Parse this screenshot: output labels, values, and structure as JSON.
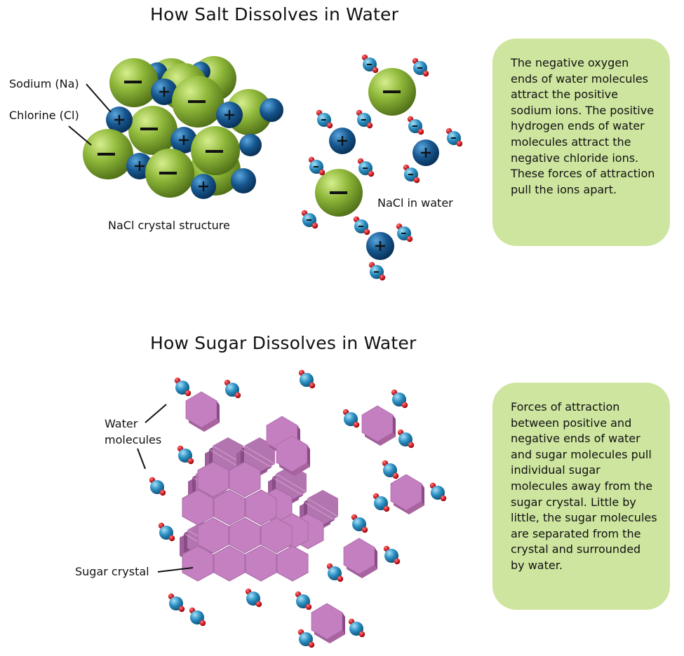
{
  "salt": {
    "title": "How Salt Dissolves in Water",
    "label_sodium": "Sodium (Na)",
    "label_chlorine": "Chlorine (Cl)",
    "label_crystal": "NaCl crystal structure",
    "label_water": "NaCl in water",
    "explanation": "The negative oxygen ends of water molecules attract the positive sodium ions. The positive hydrogen ends of water molecules attract the negative chloride ions. These forces of attraction pull the ions apart.",
    "minus_sign": "−",
    "plus_sign": "+"
  },
  "sugar": {
    "title": "How Sugar Dissolves in Water",
    "label_water_1": "Water",
    "label_water_2": "molecules",
    "label_crystal": "Sugar crystal",
    "explanation": "Forces of attraction between positive and negative ends of water and sugar molecules pull individual sugar molecules away from the sugar crystal. Little by little, the sugar molecules are separated from the crystal and surrounded by water."
  },
  "colors": {
    "chlorine": "#8fb83a",
    "sodium": "#17578f",
    "water": "#2b8fc2",
    "oxygen_h": "#c8141c",
    "sugar": "#c47fc0",
    "box": "#cde59f"
  }
}
